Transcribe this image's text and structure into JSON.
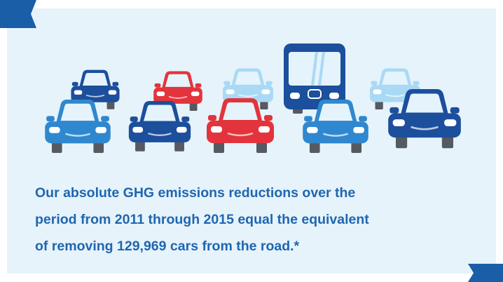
{
  "text": {
    "lines": [
      "Our absolute GHG emissions reductions over the",
      "period from 2011 through 2015 equal the equivalent",
      "of removing 129,969 cars from the road.*"
    ]
  }
}
